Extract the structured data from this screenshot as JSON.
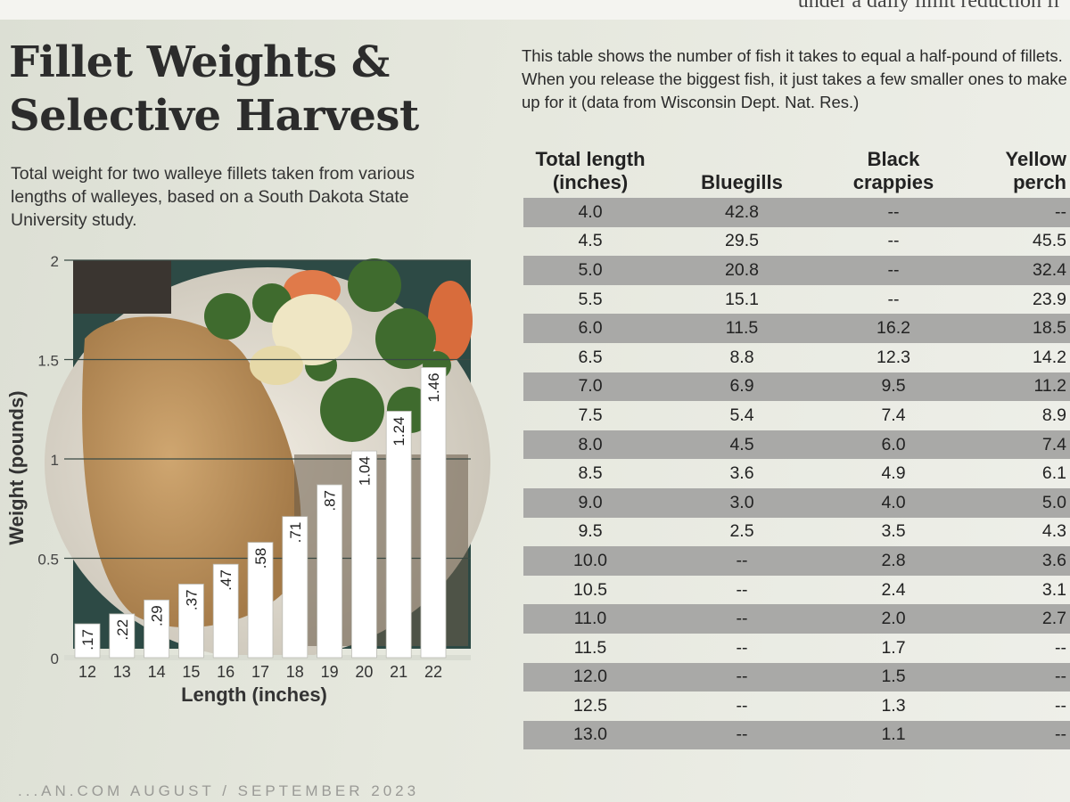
{
  "top_text": "under a daily limit reduction fr",
  "title_line1": "Fillet Weights &",
  "title_line2": "Selective Harvest",
  "subtitle": "Total weight for two walleye fillets taken from various lengths of walleyes, based on a South Dakota State University study.",
  "intro": "This table shows the number of fish it takes to equal a half-pound of fillets. When you release the biggest fish, it just takes a few smaller ones to make up for it (data from Wisconsin Dept. Nat. Res.)",
  "footer": "...AN.COM   AUGUST / SEPTEMBER 2023",
  "chart_data": [
    {
      "type": "bar",
      "categories": [
        "12",
        "13",
        "14",
        "15",
        "16",
        "17",
        "18",
        "19",
        "20",
        "21",
        "22"
      ],
      "values": [
        0.17,
        0.22,
        0.29,
        0.37,
        0.47,
        0.58,
        0.71,
        0.87,
        1.04,
        1.24,
        1.46
      ],
      "data_labels": [
        ".17",
        ".22",
        ".29",
        ".37",
        ".47",
        ".58",
        ".71",
        ".87",
        "1.04",
        "1.24",
        "1.46"
      ],
      "xlabel": "Length (inches)",
      "ylabel": "Weight (pounds)",
      "ylim": [
        0,
        2
      ],
      "yticks": [
        "0",
        "0.5",
        "1",
        "1.5",
        "2"
      ],
      "grid": true,
      "bar_color": "#ffffff"
    },
    {
      "type": "table",
      "headers": [
        "Total length (inches)",
        "Bluegills",
        "Black crappies",
        "Yellow perch"
      ],
      "rows": [
        [
          "4.0",
          "42.8",
          "--",
          "--"
        ],
        [
          "4.5",
          "29.5",
          "--",
          "45.5"
        ],
        [
          "5.0",
          "20.8",
          "--",
          "32.4"
        ],
        [
          "5.5",
          "15.1",
          "--",
          "23.9"
        ],
        [
          "6.0",
          "11.5",
          "16.2",
          "18.5"
        ],
        [
          "6.5",
          "8.8",
          "12.3",
          "14.2"
        ],
        [
          "7.0",
          "6.9",
          "9.5",
          "11.2"
        ],
        [
          "7.5",
          "5.4",
          "7.4",
          "8.9"
        ],
        [
          "8.0",
          "4.5",
          "6.0",
          "7.4"
        ],
        [
          "8.5",
          "3.6",
          "4.9",
          "6.1"
        ],
        [
          "9.0",
          "3.0",
          "4.0",
          "5.0"
        ],
        [
          "9.5",
          "2.5",
          "3.5",
          "4.3"
        ],
        [
          "10.0",
          "--",
          "2.8",
          "3.6"
        ],
        [
          "10.5",
          "--",
          "2.4",
          "3.1"
        ],
        [
          "11.0",
          "--",
          "2.0",
          "2.7"
        ],
        [
          "11.5",
          "--",
          "1.7",
          "--"
        ],
        [
          "12.0",
          "--",
          "1.5",
          "--"
        ],
        [
          "12.5",
          "--",
          "1.3",
          "--"
        ],
        [
          "13.0",
          "--",
          "1.1",
          "--"
        ]
      ],
      "shade_color": "#a9a9a7"
    }
  ]
}
